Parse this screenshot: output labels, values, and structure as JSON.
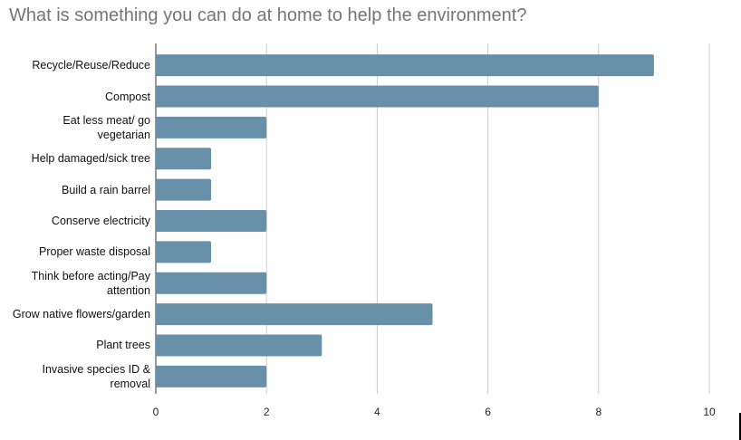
{
  "chart_data": {
    "type": "hbar",
    "title": "What is something you can do at home to help the environment?",
    "categories": [
      "Recycle/Reuse/Reduce",
      "Compost",
      "Eat less meat/ go vegetarian",
      "Help damaged/sick tree",
      "Build a rain barrel",
      "Conserve electricity",
      "Proper waste disposal",
      "Think before acting/Pay attention",
      "Grow native flowers/garden",
      "Plant trees",
      "Invasive species ID & removal"
    ],
    "values": [
      9,
      8,
      2,
      1,
      1,
      2,
      1,
      2,
      5,
      3,
      2
    ],
    "color": "#6890a9",
    "xlim": [
      0,
      10
    ],
    "xticks": [
      0,
      2,
      4,
      6,
      8,
      10
    ],
    "grid": true
  }
}
